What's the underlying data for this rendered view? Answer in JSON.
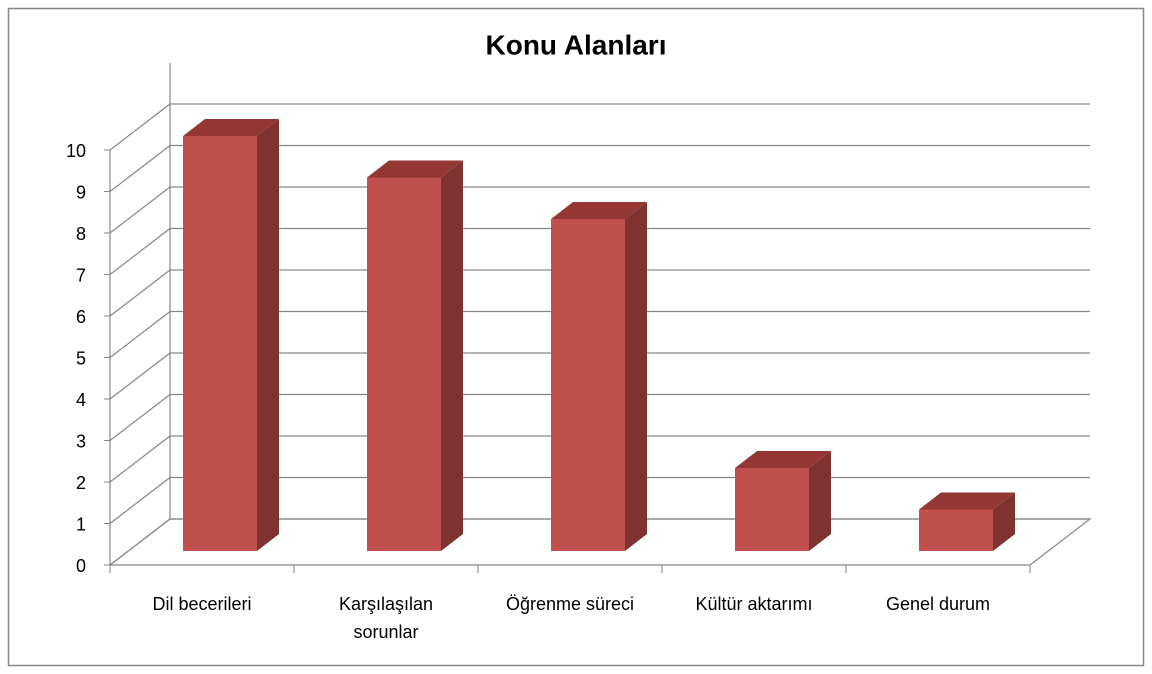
{
  "chart_data": {
    "type": "bar3d",
    "title": "Konu Alanları",
    "categories": [
      "Dil becerileri",
      "Karşılaşılan sorunlar",
      "Öğrenme süreci",
      "Kültür aktarımı",
      "Genel durum"
    ],
    "values": [
      10,
      9,
      8,
      2,
      1
    ],
    "color": "#c0504d",
    "ylim": [
      0,
      10
    ],
    "yticks": [
      0,
      1,
      2,
      3,
      4,
      5,
      6,
      7,
      8,
      9,
      10
    ],
    "grid": true
  }
}
